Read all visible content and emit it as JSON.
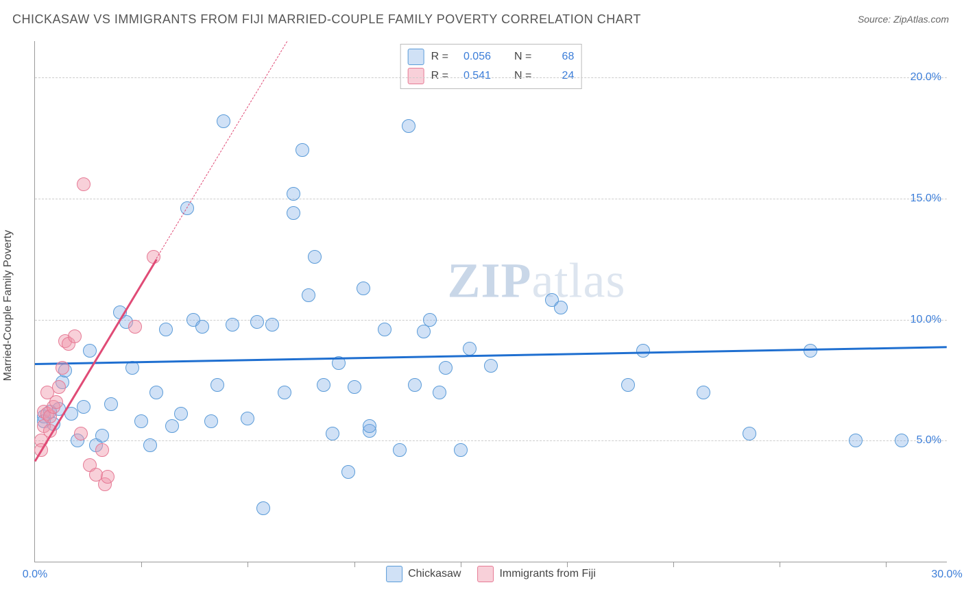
{
  "title": "CHICKASAW VS IMMIGRANTS FROM FIJI MARRIED-COUPLE FAMILY POVERTY CORRELATION CHART",
  "source": "Source: ZipAtlas.com",
  "ylabel": "Married-Couple Family Poverty",
  "watermark_bold": "ZIP",
  "watermark_rest": "atlas",
  "chart": {
    "type": "scatter",
    "xlim": [
      0,
      30
    ],
    "ylim": [
      0,
      21.5
    ],
    "background_color": "#ffffff",
    "grid_color": "#cccccc",
    "axis_color": "#999999",
    "xtick_labels": [
      {
        "x": 0,
        "label": "0.0%"
      },
      {
        "x": 30,
        "label": "30.0%"
      }
    ],
    "xtick_marks": [
      3.5,
      7,
      10.5,
      14,
      17.5,
      21,
      24.5,
      28
    ],
    "yticks": [
      {
        "y": 5,
        "label": "5.0%"
      },
      {
        "y": 10,
        "label": "10.0%"
      },
      {
        "y": 15,
        "label": "15.0%"
      },
      {
        "y": 20,
        "label": "20.0%"
      }
    ],
    "marker_radius": 9,
    "marker_border_width": 1.2,
    "series": [
      {
        "name": "Chickasaw",
        "fill_color": "rgba(120,170,230,0.35)",
        "stroke_color": "#5a9bd8",
        "R": "0.056",
        "N": "68",
        "trend": {
          "color": "#1f6fd0",
          "width": 3,
          "x1": 0,
          "y1": 8.2,
          "x2": 30,
          "y2": 8.9,
          "dash_after_x": null
        },
        "points": [
          [
            0.3,
            6.0
          ],
          [
            0.3,
            5.8
          ],
          [
            0.5,
            6.2
          ],
          [
            0.6,
            5.7
          ],
          [
            0.8,
            6.3
          ],
          [
            0.9,
            7.4
          ],
          [
            1.0,
            7.9
          ],
          [
            1.2,
            6.1
          ],
          [
            1.4,
            5.0
          ],
          [
            1.6,
            6.4
          ],
          [
            1.8,
            8.7
          ],
          [
            2.0,
            4.8
          ],
          [
            2.2,
            5.2
          ],
          [
            2.5,
            6.5
          ],
          [
            2.8,
            10.3
          ],
          [
            3.0,
            9.9
          ],
          [
            3.2,
            8.0
          ],
          [
            3.5,
            5.8
          ],
          [
            3.8,
            4.8
          ],
          [
            4.0,
            7.0
          ],
          [
            4.3,
            9.6
          ],
          [
            4.5,
            5.6
          ],
          [
            4.8,
            6.1
          ],
          [
            5.0,
            14.6
          ],
          [
            5.2,
            10.0
          ],
          [
            5.5,
            9.7
          ],
          [
            5.8,
            5.8
          ],
          [
            6.0,
            7.3
          ],
          [
            6.2,
            18.2
          ],
          [
            6.5,
            9.8
          ],
          [
            7.0,
            5.9
          ],
          [
            7.3,
            9.9
          ],
          [
            7.5,
            2.2
          ],
          [
            7.8,
            9.8
          ],
          [
            8.2,
            7.0
          ],
          [
            8.5,
            15.2
          ],
          [
            8.5,
            14.4
          ],
          [
            8.8,
            17.0
          ],
          [
            9.0,
            11.0
          ],
          [
            9.2,
            12.6
          ],
          [
            9.5,
            7.3
          ],
          [
            9.8,
            5.3
          ],
          [
            10.0,
            8.2
          ],
          [
            10.3,
            3.7
          ],
          [
            10.5,
            7.2
          ],
          [
            10.8,
            11.3
          ],
          [
            11.0,
            5.4
          ],
          [
            11.0,
            5.6
          ],
          [
            11.5,
            9.6
          ],
          [
            12.0,
            4.6
          ],
          [
            12.3,
            18.0
          ],
          [
            12.5,
            7.3
          ],
          [
            12.8,
            9.5
          ],
          [
            13.0,
            10.0
          ],
          [
            13.3,
            7.0
          ],
          [
            13.5,
            8.0
          ],
          [
            14.0,
            4.6
          ],
          [
            14.3,
            8.8
          ],
          [
            15.0,
            8.1
          ],
          [
            17.0,
            10.8
          ],
          [
            17.3,
            10.5
          ],
          [
            19.5,
            7.3
          ],
          [
            20.0,
            8.7
          ],
          [
            22.0,
            7.0
          ],
          [
            23.5,
            5.3
          ],
          [
            25.5,
            8.7
          ],
          [
            27.0,
            5.0
          ],
          [
            28.5,
            5.0
          ]
        ]
      },
      {
        "name": "Immigrants from Fiji",
        "fill_color": "rgba(240,150,170,0.45)",
        "stroke_color": "#e67a95",
        "R": "0.541",
        "N": "24",
        "trend": {
          "color": "#e04b76",
          "width": 3,
          "x1": 0,
          "y1": 4.2,
          "x2": 8.3,
          "y2": 21.5,
          "dash_after_x": 4.0
        },
        "points": [
          [
            0.2,
            5.0
          ],
          [
            0.2,
            4.6
          ],
          [
            0.3,
            6.2
          ],
          [
            0.3,
            5.6
          ],
          [
            0.4,
            7.0
          ],
          [
            0.4,
            6.1
          ],
          [
            0.5,
            6.0
          ],
          [
            0.5,
            5.4
          ],
          [
            0.6,
            6.4
          ],
          [
            0.7,
            6.6
          ],
          [
            0.8,
            7.2
          ],
          [
            0.9,
            8.0
          ],
          [
            1.0,
            9.1
          ],
          [
            1.1,
            9.0
          ],
          [
            1.3,
            9.3
          ],
          [
            1.5,
            5.3
          ],
          [
            1.6,
            15.6
          ],
          [
            1.8,
            4.0
          ],
          [
            2.0,
            3.6
          ],
          [
            2.2,
            4.6
          ],
          [
            2.3,
            3.2
          ],
          [
            2.4,
            3.5
          ],
          [
            3.3,
            9.7
          ],
          [
            3.9,
            12.6
          ]
        ]
      }
    ],
    "legend_swatch_blue_fill": "rgba(120,170,230,0.5)",
    "legend_swatch_blue_stroke": "#5a9bd8",
    "legend_swatch_pink_fill": "rgba(240,150,170,0.6)",
    "legend_swatch_pink_stroke": "#e67a95",
    "tick_label_color": "#3b7dd8",
    "tick_label_fontsize": 16,
    "title_fontsize": 18,
    "title_color": "#555555"
  },
  "statbox": {
    "rows": [
      {
        "swatch": 0,
        "R_label": "R =",
        "R": "0.056",
        "N_label": "N =",
        "N": "68"
      },
      {
        "swatch": 1,
        "R_label": "R =",
        "R": "0.541",
        "N_label": "N =",
        "N": "24"
      }
    ]
  },
  "bottom_legend": [
    {
      "swatch": 0,
      "label": "Chickasaw"
    },
    {
      "swatch": 1,
      "label": "Immigrants from Fiji"
    }
  ]
}
